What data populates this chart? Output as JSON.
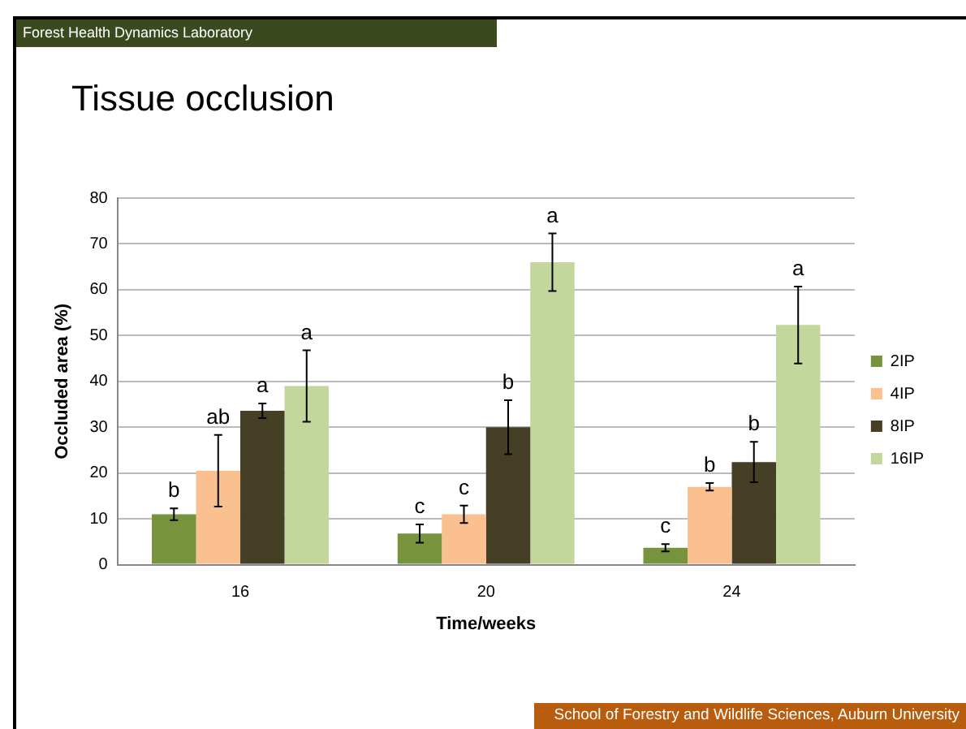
{
  "chart_data": {
    "type": "bar",
    "title": "Tissue occlusion",
    "xlabel": "Time/weeks",
    "ylabel": "Occluded area (%)",
    "categories": [
      "16",
      "20",
      "24"
    ],
    "series": [
      {
        "name": "2IP",
        "color": "#77933c",
        "values": [
          11,
          6.8,
          3.7
        ],
        "errors": [
          1.3,
          2,
          0.8
        ],
        "value_labels": [
          "b",
          "c",
          "c"
        ]
      },
      {
        "name": "4IP",
        "color": "#fac090",
        "values": [
          20.5,
          11,
          17
        ],
        "errors": [
          7.8,
          1.9,
          0.8
        ],
        "value_labels": [
          "ab",
          "c",
          "b"
        ]
      },
      {
        "name": "8IP",
        "color": "#453f26",
        "values": [
          33.6,
          30,
          22.4
        ],
        "errors": [
          1.6,
          5.9,
          4.4
        ],
        "value_labels": [
          "a",
          "b",
          "b"
        ]
      },
      {
        "name": "16IP",
        "color": "#c3d69b",
        "values": [
          39,
          66,
          52.3
        ],
        "errors": [
          7.8,
          6.3,
          8.4
        ],
        "value_labels": [
          "a",
          "a",
          "a"
        ]
      }
    ],
    "ylim": [
      0,
      80
    ],
    "yticks": [
      0,
      10,
      20,
      30,
      40,
      50,
      60,
      70,
      80
    ],
    "grid": "y",
    "legend": "right",
    "annotations": [
      "Forest Health Dynamics Laboratory",
      "School of Forestry and Wildlife Sciences, Auburn University"
    ]
  }
}
